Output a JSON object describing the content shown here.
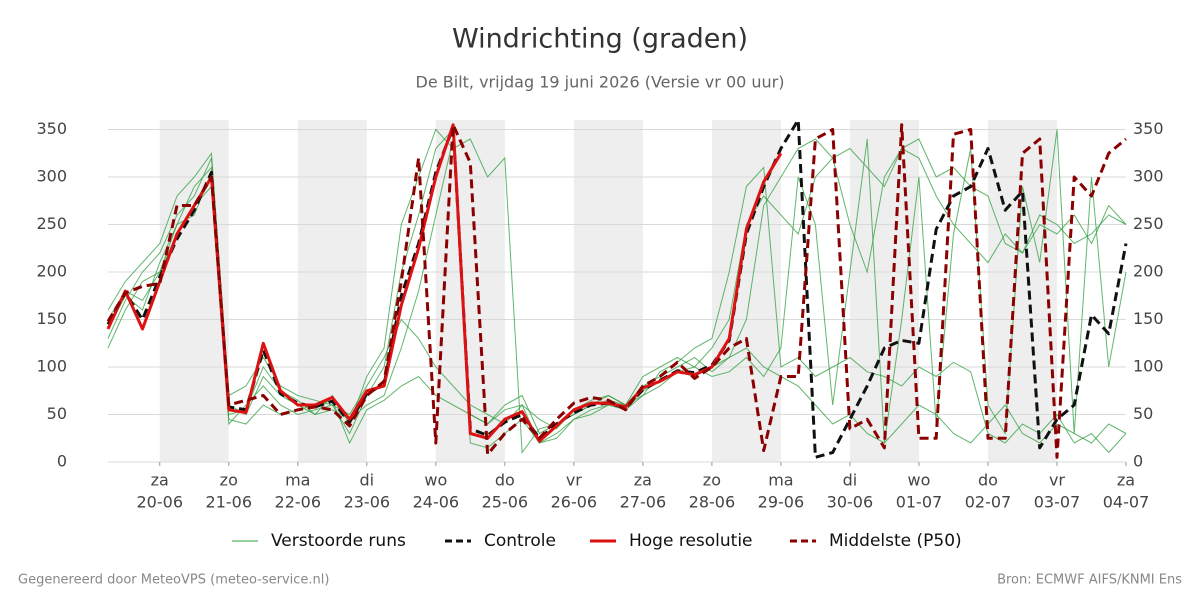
{
  "chart_data": {
    "type": "line",
    "title": "Windrichting (graden)",
    "subtitle": "De Bilt, vrijdag 19 juni 2026 (Versie vr 00 uur)",
    "footer_left": "Gegenereerd door MeteoVPS (meteo-service.nl)",
    "footer_right": "Bron: ECMWF AIFS/KNMI Ens",
    "xlim": [
      "2026-06-19T06",
      "2026-07-04T00"
    ],
    "xticks": [
      {
        "value": "2026-06-20T00",
        "label": [
          "za",
          "20-06"
        ]
      },
      {
        "value": "2026-06-21T00",
        "label": [
          "zo",
          "21-06"
        ]
      },
      {
        "value": "2026-06-22T00",
        "label": [
          "ma",
          "22-06"
        ]
      },
      {
        "value": "2026-06-23T00",
        "label": [
          "di",
          "23-06"
        ]
      },
      {
        "value": "2026-06-24T00",
        "label": [
          "wo",
          "24-06"
        ]
      },
      {
        "value": "2026-06-25T00",
        "label": [
          "do",
          "25-06"
        ]
      },
      {
        "value": "2026-06-26T00",
        "label": [
          "vr",
          "26-06"
        ]
      },
      {
        "value": "2026-06-27T00",
        "label": [
          "za",
          "27-06"
        ]
      },
      {
        "value": "2026-06-28T00",
        "label": [
          "zo",
          "28-06"
        ]
      },
      {
        "value": "2026-06-29T00",
        "label": [
          "ma",
          "29-06"
        ]
      },
      {
        "value": "2026-06-30T00",
        "label": [
          "di",
          "30-06"
        ]
      },
      {
        "value": "2026-07-01T00",
        "label": [
          "wo",
          "01-07"
        ]
      },
      {
        "value": "2026-07-02T00",
        "label": [
          "do",
          "02-07"
        ]
      },
      {
        "value": "2026-07-03T00",
        "label": [
          "vr",
          "03-07"
        ]
      },
      {
        "value": "2026-07-04T00",
        "label": [
          "za",
          "04-07"
        ]
      }
    ],
    "ylim": [
      0,
      360
    ],
    "yticks": [
      0,
      50,
      100,
      150,
      200,
      250,
      300,
      350
    ],
    "grid": true,
    "x": [
      "2026-06-19T06",
      "2026-06-19T12",
      "2026-06-19T18",
      "2026-06-20T00",
      "2026-06-20T06",
      "2026-06-20T12",
      "2026-06-20T18",
      "2026-06-21T00",
      "2026-06-21T06",
      "2026-06-21T12",
      "2026-06-21T18",
      "2026-06-22T00",
      "2026-06-22T06",
      "2026-06-22T12",
      "2026-06-22T18",
      "2026-06-23T00",
      "2026-06-23T06",
      "2026-06-23T12",
      "2026-06-23T18",
      "2026-06-24T00",
      "2026-06-24T06",
      "2026-06-24T12",
      "2026-06-24T18",
      "2026-06-25T00",
      "2026-06-25T06",
      "2026-06-25T12",
      "2026-06-25T18",
      "2026-06-26T00",
      "2026-06-26T06",
      "2026-06-26T12",
      "2026-06-26T18",
      "2026-06-27T00",
      "2026-06-27T06",
      "2026-06-27T12",
      "2026-06-27T18",
      "2026-06-28T00",
      "2026-06-28T06",
      "2026-06-28T12",
      "2026-06-28T18",
      "2026-06-29T00",
      "2026-06-29T06",
      "2026-06-29T12",
      "2026-06-29T18",
      "2026-06-30T00",
      "2026-06-30T06",
      "2026-06-30T12",
      "2026-06-30T18",
      "2026-07-01T00",
      "2026-07-01T06",
      "2026-07-01T12",
      "2026-07-01T18",
      "2026-07-02T00",
      "2026-07-02T06",
      "2026-07-02T12",
      "2026-07-02T18",
      "2026-07-03T00",
      "2026-07-03T06",
      "2026-07-03T12",
      "2026-07-03T18",
      "2026-07-04T00"
    ],
    "ensemble": {
      "name": "Verstoorde runs",
      "color": "#2e9e3e",
      "members": [
        [
          130,
          170,
          200,
          220,
          260,
          280,
          320,
          40,
          60,
          80,
          60,
          50,
          55,
          60,
          30,
          70,
          100,
          200,
          260,
          330,
          350,
          50,
          40,
          60,
          70,
          30,
          40,
          50,
          60,
          70,
          60,
          80,
          90,
          100,
          110,
          95,
          110,
          150,
          270,
          300,
          330,
          340,
          320,
          250,
          200,
          300,
          330,
          320,
          280,
          250,
          230,
          210,
          240,
          220,
          260,
          250,
          230,
          240,
          260,
          250
        ],
        [
          150,
          180,
          170,
          200,
          250,
          290,
          310,
          60,
          50,
          90,
          70,
          60,
          50,
          55,
          45,
          60,
          70,
          120,
          180,
          260,
          340,
          20,
          15,
          30,
          45,
          20,
          30,
          45,
          55,
          60,
          55,
          70,
          80,
          95,
          90,
          100,
          110,
          120,
          100,
          90,
          80,
          60,
          40,
          50,
          30,
          20,
          40,
          60,
          50,
          30,
          20,
          40,
          60,
          30,
          20,
          40,
          30,
          20,
          40,
          30
        ],
        [
          160,
          190,
          210,
          230,
          280,
          300,
          325,
          70,
          80,
          110,
          80,
          70,
          65,
          60,
          50,
          80,
          110,
          150,
          130,
          100,
          80,
          60,
          50,
          40,
          60,
          45,
          35,
          55,
          65,
          70,
          60,
          90,
          100,
          110,
          100,
          120,
          150,
          250,
          280,
          260,
          240,
          300,
          320,
          330,
          310,
          290,
          330,
          340,
          300,
          310,
          290,
          280,
          230,
          220,
          250,
          240,
          260,
          230,
          270,
          250
        ],
        [
          120,
          160,
          190,
          200,
          240,
          270,
          290,
          45,
          40,
          60,
          50,
          55,
          60,
          65,
          20,
          55,
          65,
          80,
          90,
          70,
          60,
          50,
          40,
          55,
          60,
          20,
          25,
          45,
          50,
          60,
          60,
          70,
          95,
          105,
          120,
          130,
          200,
          290,
          310,
          100,
          110,
          90,
          100,
          110,
          95,
          90,
          80,
          100,
          90,
          105,
          95,
          30,
          20,
          40,
          30,
          50,
          20,
          30,
          10,
          30
        ],
        [
          140,
          175,
          160,
          210,
          250,
          260,
          305,
          50,
          55,
          100,
          75,
          65,
          50,
          70,
          40,
          90,
          120,
          250,
          300,
          350,
          330,
          340,
          300,
          320,
          10,
          35,
          40,
          50,
          60,
          65,
          60,
          75,
          85,
          95,
          100,
          90,
          95,
          110,
          90,
          120,
          300,
          250,
          60,
          200,
          340,
          20,
          150,
          300,
          40,
          240,
          330,
          60,
          30,
          290,
          210,
          350,
          30,
          300,
          100,
          200
        ]
      ]
    },
    "series": [
      {
        "name": "Controle",
        "color": "#111111",
        "dash": true,
        "values": [
          145,
          178,
          150,
          195,
          235,
          265,
          305,
          58,
          55,
          118,
          72,
          62,
          58,
          64,
          42,
          72,
          82,
          175,
          230,
          305,
          352,
          35,
          28,
          42,
          50,
          25,
          40,
          52,
          60,
          62,
          57,
          76,
          86,
          96,
          94,
          102,
          128,
          240,
          290,
          330,
          360,
          5,
          10,
          45,
          80,
          120,
          128,
          125,
          245,
          280,
          290,
          330,
          265,
          285,
          15,
          45,
          60,
          155,
          135,
          230
        ]
      },
      {
        "name": "Hoge resolutie",
        "color": "#dd1111",
        "dash": false,
        "values": [
          140,
          180,
          140,
          190,
          240,
          270,
          300,
          55,
          52,
          125,
          75,
          60,
          60,
          68,
          45,
          75,
          80,
          165,
          225,
          300,
          355,
          30,
          25,
          45,
          53,
          22,
          38,
          55,
          62,
          62,
          58,
          78,
          85,
          95,
          92,
          100,
          130,
          245,
          295,
          325,
          null,
          null,
          null,
          null,
          null,
          null,
          null,
          null,
          null,
          null,
          null,
          null,
          null,
          null,
          null,
          null,
          null,
          null,
          null,
          null
        ]
      },
      {
        "name": "Middelste (P50)",
        "color": "#8b0000",
        "dash": true,
        "values": [
          148,
          178,
          185,
          188,
          270,
          270,
          300,
          60,
          65,
          70,
          50,
          55,
          58,
          55,
          38,
          70,
          85,
          190,
          320,
          20,
          355,
          315,
          8,
          30,
          45,
          25,
          45,
          62,
          68,
          65,
          55,
          80,
          90,
          105,
          88,
          100,
          120,
          130,
          12,
          90,
          90,
          340,
          350,
          35,
          45,
          15,
          355,
          25,
          25,
          345,
          350,
          25,
          25,
          325,
          340,
          5,
          300,
          280,
          325,
          340
        ]
      }
    ]
  }
}
